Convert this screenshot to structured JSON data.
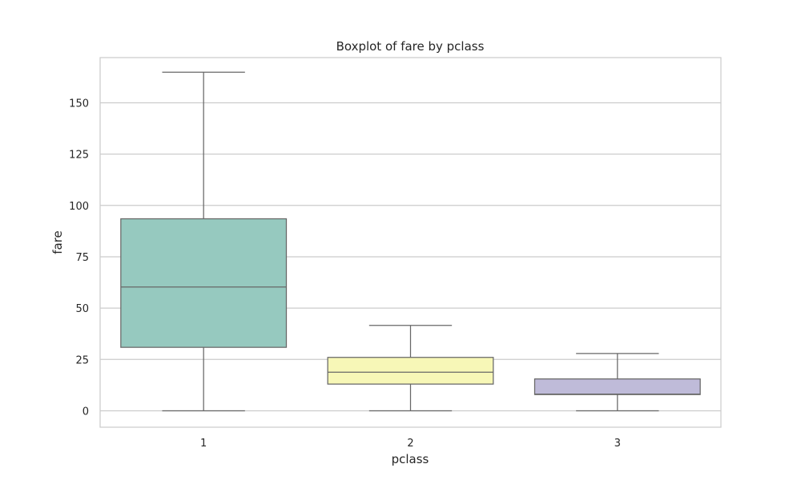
{
  "chart_data": {
    "type": "box",
    "title": "Boxplot of fare by pclass",
    "xlabel": "pclass",
    "ylabel": "fare",
    "ylim": [
      -8,
      172
    ],
    "yticks": [
      0,
      25,
      50,
      75,
      100,
      125,
      150
    ],
    "grid": "horizontal",
    "categories": [
      "1",
      "2",
      "3"
    ],
    "boxes": [
      {
        "category": "1",
        "whisker_low": 0,
        "q1": 30.9,
        "median": 60.3,
        "q3": 93.5,
        "whisker_high": 164.9,
        "color": "#96c9bf"
      },
      {
        "category": "2",
        "whisker_low": 0,
        "q1": 13.0,
        "median": 18.8,
        "q3": 26.0,
        "whisker_high": 41.6,
        "color": "#f7f7b7"
      },
      {
        "category": "3",
        "whisker_low": 0,
        "q1": 7.9,
        "median": 8.1,
        "q3": 15.5,
        "whisker_high": 27.9,
        "color": "#bfbbd9"
      }
    ]
  }
}
